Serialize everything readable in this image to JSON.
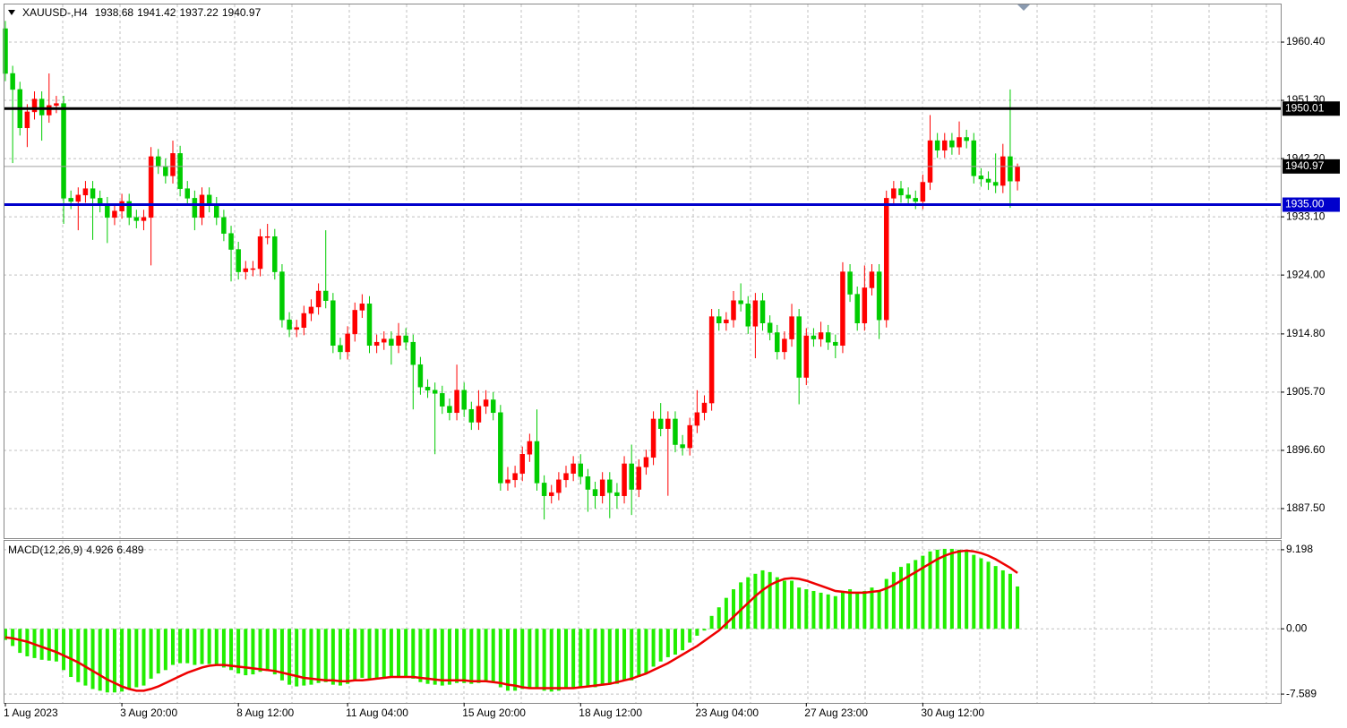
{
  "chart_data": [
    {
      "type": "candlestick",
      "symbol": "XAUUSD-,H4",
      "grid": true,
      "up_color": "#ff0000",
      "down_color": "#00cc00",
      "categories": [
        "1 Aug 2023",
        null,
        null,
        null,
        null,
        null,
        null,
        null,
        null,
        null,
        null,
        null,
        null,
        null,
        null,
        null,
        "3 Aug 20:00",
        null,
        null,
        null,
        null,
        null,
        null,
        null,
        null,
        null,
        null,
        null,
        null,
        null,
        null,
        null,
        "8 Aug 12:00",
        null,
        null,
        null,
        null,
        null,
        null,
        null,
        null,
        null,
        null,
        null,
        null,
        null,
        null,
        "11 Aug 04:00",
        null,
        null,
        null,
        null,
        null,
        null,
        null,
        null,
        null,
        null,
        null,
        null,
        null,
        null,
        null,
        "15 Aug 20:00",
        null,
        null,
        null,
        null,
        null,
        null,
        null,
        null,
        null,
        null,
        null,
        null,
        null,
        null,
        null,
        "18 Aug 12:00",
        null,
        null,
        null,
        null,
        null,
        null,
        null,
        null,
        null,
        null,
        null,
        null,
        null,
        null,
        null,
        "23 Aug 04:00",
        null,
        null,
        null,
        null,
        null,
        null,
        null,
        null,
        null,
        null,
        null,
        null,
        null,
        null,
        "27 Aug 23:00",
        null,
        null,
        null,
        null,
        null,
        null,
        null,
        null,
        null,
        null,
        null,
        null,
        null,
        null,
        null,
        "30 Aug 12:00",
        null,
        null,
        null,
        null,
        null,
        null,
        null,
        null,
        null,
        null,
        null,
        null,
        null
      ],
      "open": [
        1962.5,
        1955.5,
        1953.0,
        1947.0,
        1949.5,
        1951.5,
        1949.0,
        1950.5,
        1950.8,
        1936.0,
        1935.5,
        1936.5,
        1937.5,
        1936.0,
        1935.0,
        1933.0,
        1934.0,
        1935.5,
        1933.0,
        1932.5,
        1933.0,
        1942.5,
        1941.0,
        1939.5,
        1943.0,
        1937.5,
        1936.0,
        1933.0,
        1936.5,
        1935.0,
        1933.0,
        1930.5,
        1928.0,
        1924.5,
        1925.0,
        1925.0,
        1930.0,
        1930.0,
        1924.5,
        1917.0,
        1915.5,
        1915.8,
        1918.0,
        1919.0,
        1921.5,
        1920.0,
        1913.0,
        1912.0,
        1914.8,
        1918.5,
        1919.5,
        1913.0,
        1913.5,
        1914.0,
        1913.0,
        1914.5,
        1913.5,
        1910.0,
        1906.5,
        1906.0,
        1905.5,
        1903.5,
        1902.5,
        1906.0,
        1903.0,
        1901.0,
        1903.5,
        1904.5,
        1902.5,
        1891.5,
        1892.0,
        1893.0,
        1896.0,
        1898.0,
        1891.5,
        1889.5,
        1890.0,
        1892.0,
        1893.0,
        1894.5,
        1892.5,
        1890.5,
        1889.5,
        1892.0,
        1890.0,
        1889.5,
        1894.5,
        1890.5,
        1894.0,
        1895.5,
        1901.5,
        1900.0,
        1901.5,
        1897.5,
        1897.0,
        1900.5,
        1902.5,
        1904.0,
        1917.5,
        1916.5,
        1917.0,
        1920.0,
        1919.5,
        1916.0,
        1920.0,
        1916.5,
        1915.0,
        1912.0,
        1914.0,
        1917.5,
        1908.0,
        1914.5,
        1914.0,
        1915.0,
        1913.5,
        1913.0,
        1924.5,
        1921.0,
        1916.5,
        1922.0,
        1924.5,
        1917.0,
        1936.0,
        1937.5,
        1936.5,
        1936.0,
        1935.5,
        1938.5,
        1945.0,
        1943.5,
        1945.0,
        1944.0,
        1945.5,
        1945.0,
        1939.5,
        1939.0,
        1938.5,
        1938.0,
        1942.5,
        1938.68
      ],
      "high": [
        1963.7,
        1956.7,
        1954.2,
        1950.7,
        1952.7,
        1952.7,
        1955.5,
        1952.0,
        1952.0,
        1937.2,
        1937.7,
        1938.7,
        1938.7,
        1937.2,
        1936.2,
        1935.2,
        1936.7,
        1936.7,
        1934.2,
        1934.2,
        1944.0,
        1943.7,
        1942.2,
        1945.0,
        1944.2,
        1938.7,
        1937.2,
        1937.7,
        1937.7,
        1936.2,
        1934.2,
        1931.7,
        1929.2,
        1926.2,
        1926.2,
        1931.2,
        1932.0,
        1931.2,
        1925.7,
        1918.2,
        1917.0,
        1919.2,
        1920.2,
        1922.7,
        1931.0,
        1921.2,
        1914.2,
        1916.0,
        1919.7,
        1921.0,
        1920.7,
        1914.7,
        1915.2,
        1915.2,
        1916.5,
        1915.7,
        1914.7,
        1911.2,
        1907.7,
        1907.2,
        1906.7,
        1904.7,
        1910.0,
        1907.2,
        1904.2,
        1906.0,
        1906.0,
        1905.7,
        1903.7,
        1894.0,
        1894.2,
        1897.2,
        1899.2,
        1903.0,
        1892.7,
        1891.2,
        1893.2,
        1894.2,
        1895.7,
        1896.0,
        1893.7,
        1891.7,
        1893.2,
        1893.2,
        1891.5,
        1895.7,
        1897.5,
        1895.2,
        1896.7,
        1902.7,
        1904.0,
        1902.7,
        1902.7,
        1899.0,
        1901.7,
        1906.0,
        1905.2,
        1918.7,
        1918.7,
        1918.2,
        1921.5,
        1922.7,
        1920.7,
        1921.2,
        1921.2,
        1917.7,
        1916.2,
        1915.2,
        1919.5,
        1918.7,
        1915.7,
        1915.7,
        1916.7,
        1916.2,
        1914.7,
        1926.0,
        1925.7,
        1922.2,
        1925.5,
        1925.7,
        1925.7,
        1937.2,
        1938.7,
        1938.7,
        1937.7,
        1937.2,
        1939.7,
        1949.0,
        1946.2,
        1946.2,
        1946.2,
        1948.0,
        1946.7,
        1946.2,
        1940.7,
        1940.2,
        1943.0,
        1944.5,
        1953.0,
        1941.42
      ],
      "low": [
        1954.3,
        1941.5,
        1945.8,
        1944.0,
        1948.3,
        1945.0,
        1947.8,
        1949.3,
        1932.0,
        1934.3,
        1931.0,
        1935.3,
        1929.5,
        1933.8,
        1929.0,
        1931.8,
        1932.8,
        1931.8,
        1931.3,
        1931.0,
        1925.5,
        1939.8,
        1938.3,
        1938.3,
        1936.3,
        1934.8,
        1931.0,
        1931.8,
        1933.8,
        1931.8,
        1929.3,
        1923.0,
        1923.3,
        1923.3,
        1923.8,
        1923.8,
        1928.8,
        1923.3,
        1915.8,
        1914.3,
        1914.3,
        1914.6,
        1916.8,
        1917.8,
        1918.8,
        1911.8,
        1910.8,
        1910.8,
        1913.6,
        1917.3,
        1911.8,
        1911.8,
        1912.3,
        1910.0,
        1911.8,
        1912.3,
        1903.0,
        1905.3,
        1904.8,
        1896.0,
        1902.3,
        1901.3,
        1901.3,
        1901.8,
        1899.8,
        1899.8,
        1902.3,
        1901.3,
        1890.3,
        1890.3,
        1890.8,
        1891.8,
        1894.8,
        1890.3,
        1885.8,
        1888.3,
        1888.8,
        1890.8,
        1891.8,
        1891.3,
        1887.0,
        1887.5,
        1888.3,
        1886.0,
        1887.5,
        1888.3,
        1886.5,
        1889.3,
        1892.8,
        1894.3,
        1898.8,
        1889.5,
        1896.3,
        1895.8,
        1895.8,
        1899.3,
        1901.3,
        1902.8,
        1915.3,
        1915.3,
        1915.8,
        1918.3,
        1914.8,
        1911.0,
        1915.3,
        1913.8,
        1910.8,
        1910.8,
        1912.8,
        1903.8,
        1906.8,
        1912.8,
        1912.8,
        1912.3,
        1911.0,
        1911.8,
        1919.8,
        1915.3,
        1915.3,
        1920.8,
        1914.0,
        1915.8,
        1934.8,
        1935.3,
        1934.8,
        1934.3,
        1934.3,
        1937.3,
        1942.3,
        1942.3,
        1942.8,
        1942.8,
        1943.8,
        1938.3,
        1937.8,
        1937.3,
        1936.8,
        1936.8,
        1934.5,
        1937.22
      ],
      "close": [
        1955.5,
        1953.0,
        1947.0,
        1949.5,
        1951.5,
        1949.0,
        1950.5,
        1950.8,
        1936.0,
        1935.5,
        1936.5,
        1937.5,
        1936.0,
        1935.0,
        1933.0,
        1934.0,
        1935.5,
        1933.0,
        1932.5,
        1933.0,
        1942.5,
        1941.0,
        1939.5,
        1943.0,
        1937.5,
        1936.0,
        1933.0,
        1936.5,
        1935.0,
        1933.0,
        1930.5,
        1928.0,
        1924.5,
        1925.0,
        1925.0,
        1930.0,
        1930.0,
        1924.5,
        1917.0,
        1915.5,
        1915.8,
        1918.0,
        1919.0,
        1921.5,
        1920.0,
        1913.0,
        1912.0,
        1914.8,
        1918.5,
        1919.5,
        1913.0,
        1913.5,
        1914.0,
        1913.0,
        1914.5,
        1913.5,
        1910.0,
        1906.5,
        1906.0,
        1905.5,
        1903.5,
        1902.5,
        1906.0,
        1903.0,
        1901.0,
        1903.5,
        1904.5,
        1902.5,
        1891.5,
        1892.0,
        1893.0,
        1896.0,
        1898.0,
        1891.5,
        1889.5,
        1890.0,
        1892.0,
        1893.0,
        1894.5,
        1892.5,
        1890.5,
        1889.5,
        1892.0,
        1890.0,
        1889.5,
        1894.5,
        1890.5,
        1894.0,
        1895.5,
        1901.5,
        1900.0,
        1901.5,
        1897.5,
        1897.0,
        1900.5,
        1902.5,
        1904.0,
        1917.5,
        1916.5,
        1917.0,
        1920.0,
        1919.5,
        1916.0,
        1920.0,
        1916.5,
        1915.0,
        1912.0,
        1914.0,
        1917.5,
        1908.0,
        1914.5,
        1914.0,
        1915.0,
        1913.5,
        1913.0,
        1924.5,
        1921.0,
        1916.5,
        1922.0,
        1924.5,
        1917.0,
        1936.0,
        1937.5,
        1936.5,
        1936.0,
        1935.5,
        1938.5,
        1945.0,
        1943.5,
        1945.0,
        1944.0,
        1945.5,
        1945.0,
        1939.5,
        1939.0,
        1938.5,
        1938.0,
        1942.5,
        1938.68,
        1940.97
      ],
      "ylim": [
        1882.88,
        1966.28
      ],
      "yticks": [
        {
          "value": 1960.4,
          "label": "1960.40"
        },
        {
          "value": 1951.3,
          "label": "1951.30"
        },
        {
          "value": 1942.2,
          "label": "1942.20"
        },
        {
          "value": 1933.1,
          "label": "1933.10"
        },
        {
          "value": 1924,
          "label": "1924.00"
        },
        {
          "value": 1914.8,
          "label": "1914.80"
        },
        {
          "value": 1905.7,
          "label": "1905.70"
        },
        {
          "value": 1896.6,
          "label": "1896.60"
        },
        {
          "value": 1887.5,
          "label": "1887.50"
        }
      ],
      "levels": [
        {
          "value": 1950.01,
          "color": "#000000"
        },
        {
          "value": 1935,
          "label": "1935.00",
          "color": "#0000cc"
        }
      ]
    },
    {
      "type": "macd",
      "title": "MACD(12,26,9)",
      "grid": true,
      "histogram": {
        "color": "#22ee00",
        "values": [
          -1.3,
          -2.0,
          -2.8,
          -3.2,
          -3.4,
          -3.6,
          -3.7,
          -3.8,
          -4.8,
          -5.6,
          -6.2,
          -6.6,
          -7.0,
          -7.2,
          -7.4,
          -7.4,
          -7.3,
          -7.0,
          -6.8,
          -6.6,
          -5.8,
          -5.2,
          -4.8,
          -4.2,
          -4.0,
          -4.0,
          -4.2,
          -4.1,
          -4.1,
          -4.3,
          -4.5,
          -4.8,
          -5.2,
          -5.4,
          -5.3,
          -5.0,
          -4.9,
          -5.3,
          -6.0,
          -6.5,
          -6.7,
          -6.6,
          -6.5,
          -6.3,
          -6.2,
          -6.5,
          -6.6,
          -6.4,
          -6.0,
          -5.7,
          -5.8,
          -5.8,
          -5.7,
          -5.7,
          -5.6,
          -5.6,
          -5.8,
          -6.2,
          -6.4,
          -6.5,
          -6.6,
          -6.5,
          -6.3,
          -6.3,
          -6.4,
          -6.3,
          -6.2,
          -6.2,
          -6.8,
          -7.2,
          -7.2,
          -7.0,
          -6.8,
          -7.0,
          -7.2,
          -7.3,
          -7.2,
          -7.0,
          -6.8,
          -6.8,
          -6.8,
          -6.8,
          -6.6,
          -6.5,
          -6.4,
          -6.0,
          -6.0,
          -5.6,
          -5.2,
          -4.4,
          -3.8,
          -3.3,
          -3.0,
          -2.5,
          -1.6,
          -0.8,
          -0.2,
          1.5,
          2.5,
          3.6,
          4.6,
          5.4,
          6.0,
          6.4,
          6.8,
          6.6,
          6.0,
          5.6,
          5.6,
          4.8,
          4.6,
          4.4,
          4.2,
          4.0,
          3.8,
          4.4,
          4.6,
          4.2,
          4.4,
          4.8,
          4.4,
          5.8,
          6.6,
          7.2,
          7.6,
          8.0,
          8.5,
          9.0,
          9.2,
          9.3,
          9.3,
          9.2,
          9.0,
          8.6,
          8.2,
          7.8,
          7.3,
          6.8,
          6.4,
          4.926
        ]
      },
      "signal": {
        "color": "#ee0000",
        "values": [
          -1.0,
          -1.1,
          -1.3,
          -1.5,
          -1.8,
          -2.1,
          -2.4,
          -2.7,
          -3.1,
          -3.5,
          -3.9,
          -4.4,
          -4.9,
          -5.4,
          -5.9,
          -6.3,
          -6.7,
          -7.0,
          -7.2,
          -7.2,
          -7.0,
          -6.7,
          -6.3,
          -5.9,
          -5.5,
          -5.1,
          -4.8,
          -4.5,
          -4.3,
          -4.2,
          -4.2,
          -4.3,
          -4.4,
          -4.5,
          -4.6,
          -4.7,
          -4.8,
          -4.9,
          -5.1,
          -5.3,
          -5.5,
          -5.7,
          -5.8,
          -5.9,
          -6.0,
          -6.0,
          -6.1,
          -6.1,
          -6.0,
          -6.0,
          -5.9,
          -5.8,
          -5.7,
          -5.6,
          -5.6,
          -5.6,
          -5.6,
          -5.7,
          -5.8,
          -5.9,
          -6.0,
          -6.0,
          -6.0,
          -6.0,
          -6.1,
          -6.1,
          -6.1,
          -6.2,
          -6.3,
          -6.5,
          -6.6,
          -6.8,
          -6.9,
          -6.9,
          -6.9,
          -6.9,
          -6.9,
          -6.9,
          -6.9,
          -6.8,
          -6.7,
          -6.6,
          -6.5,
          -6.4,
          -6.2,
          -6.0,
          -5.8,
          -5.5,
          -5.2,
          -4.8,
          -4.4,
          -4.0,
          -3.5,
          -3.0,
          -2.5,
          -2.0,
          -1.4,
          -0.8,
          -0.2,
          0.6,
          1.4,
          2.2,
          3.0,
          3.8,
          4.5,
          5.1,
          5.5,
          5.8,
          5.9,
          5.8,
          5.6,
          5.3,
          5.0,
          4.7,
          4.4,
          4.3,
          4.2,
          4.2,
          4.2,
          4.3,
          4.4,
          4.7,
          5.1,
          5.6,
          6.1,
          6.6,
          7.1,
          7.6,
          8.1,
          8.5,
          8.8,
          9.0,
          9.1,
          9.0,
          8.8,
          8.5,
          8.1,
          7.6,
          7.1,
          6.489
        ]
      },
      "ylim": [
        -8.62,
        10.23
      ],
      "yticks": [
        9.198,
        {
          "value": 0,
          "label": "0.00"
        },
        -7.589
      ]
    }
  ]
}
